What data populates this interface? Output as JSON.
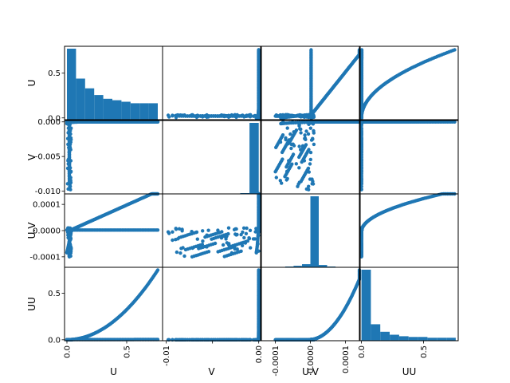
{
  "chart_data": {
    "type": "scatter-matrix",
    "variables": [
      "U",
      "V",
      "U.V",
      "UU"
    ],
    "color": "#1f77b4",
    "grid": false,
    "axes": {
      "U": {
        "lim": [
          -0.02,
          0.8
        ],
        "ticks": [
          0.0,
          0.5
        ],
        "ticklabels": [
          "0.0",
          "0.5"
        ]
      },
      "V": {
        "lim": [
          -0.0104,
          0.0002
        ],
        "ticks": [
          -0.01,
          -0.005,
          0.0
        ],
        "ticklabels": [
          "-0.010",
          "-0.005",
          "0.000"
        ],
        "xticklabels": [
          "-0.01",
          "",
          "0.00"
        ]
      },
      "U.V": {
        "lim": [
          -0.00014,
          0.00014
        ],
        "ticks": [
          -0.0001,
          0.0,
          0.0001
        ],
        "ticklabels": [
          "-0.0001",
          "0.0000",
          "0.0001"
        ]
      },
      "UU": {
        "lim": [
          -0.01,
          0.78
        ],
        "ticks": [
          0.0,
          0.5
        ],
        "ticklabels": [
          "0.0",
          "0.5"
        ]
      }
    },
    "histograms": {
      "U": {
        "bins": [
          0.0,
          0.076,
          0.152,
          0.228,
          0.304,
          0.38,
          0.456,
          0.532,
          0.608,
          0.684,
          0.76
        ],
        "counts": [
          95,
          55,
          42,
          33,
          28,
          26,
          24,
          22,
          22,
          22
        ]
      },
      "V": {
        "bins": [
          -0.01,
          -0.009,
          -0.008,
          -0.007,
          -0.006,
          -0.005,
          -0.004,
          -0.003,
          -0.002,
          -0.001,
          0.0
        ],
        "counts": [
          0,
          0,
          0,
          0,
          0,
          0,
          0,
          0,
          1,
          92
        ]
      },
      "U.V": {
        "bins": [
          -0.00012,
          -9.6e-05,
          -7.2e-05,
          -4.8e-05,
          -2.4e-05,
          0.0,
          2.4e-05,
          4.8e-05,
          7.2e-05,
          9.6e-05,
          0.00012
        ],
        "counts": [
          0,
          0,
          1,
          2,
          4,
          92,
          3,
          1,
          0,
          0
        ]
      },
      "UU": {
        "bins": [
          0.0,
          0.076,
          0.152,
          0.228,
          0.304,
          0.38,
          0.456,
          0.532,
          0.608,
          0.684,
          0.76
        ],
        "counts": [
          95,
          22,
          12,
          8,
          6,
          5,
          5,
          4,
          4,
          4
        ]
      }
    }
  }
}
